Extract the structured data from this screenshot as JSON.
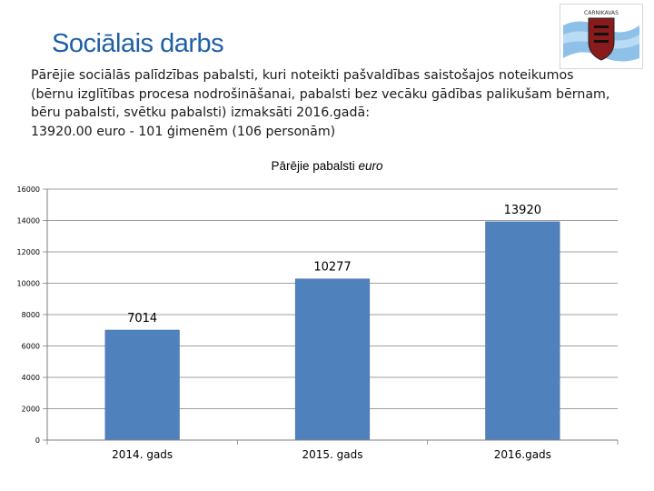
{
  "slide": {
    "title": "Sociālais darbs",
    "paragraph_lines": [
      "Pārējie  sociālās palīdzības pabalsti, kuri noteikti pašvaldības saistošajos noteikumos",
      "(bērnu izglītības procesa nodrošināšanai, pabalsti bez vecāku gādības palikušam bērnam,",
      "bēru pabalsti, svētku pabalsti) izmaksāti 2016.gadā:",
      "13920.00 euro  -  101 ģimenēm (106 personām)"
    ],
    "emblem_caption": "CARNIKAVAS"
  },
  "colors": {
    "title": "#1f5fa8",
    "bar": "#4f81bd",
    "bar_edge": "#3e6a9e",
    "axis": "#7f7f7f",
    "grid": "#7f7f7f"
  },
  "chart_data": {
    "type": "bar",
    "title": "Pārējie pabalsti",
    "title_unit": "euro",
    "categories": [
      "2014. gads",
      "2015. gads",
      "2016.gads"
    ],
    "values": [
      7014,
      10277,
      13920
    ],
    "data_labels": [
      "7014",
      "10277",
      "13920"
    ],
    "ylim": [
      0,
      16000
    ],
    "yticks": [
      0,
      2000,
      4000,
      6000,
      8000,
      10000,
      12000,
      14000,
      16000
    ],
    "ytick_labels": [
      "0",
      "2000",
      "4000",
      "6000",
      "8000",
      "10000",
      "12000",
      "14000",
      "16000"
    ],
    "grid": true,
    "legend": "none",
    "xlabel": "",
    "ylabel": ""
  }
}
